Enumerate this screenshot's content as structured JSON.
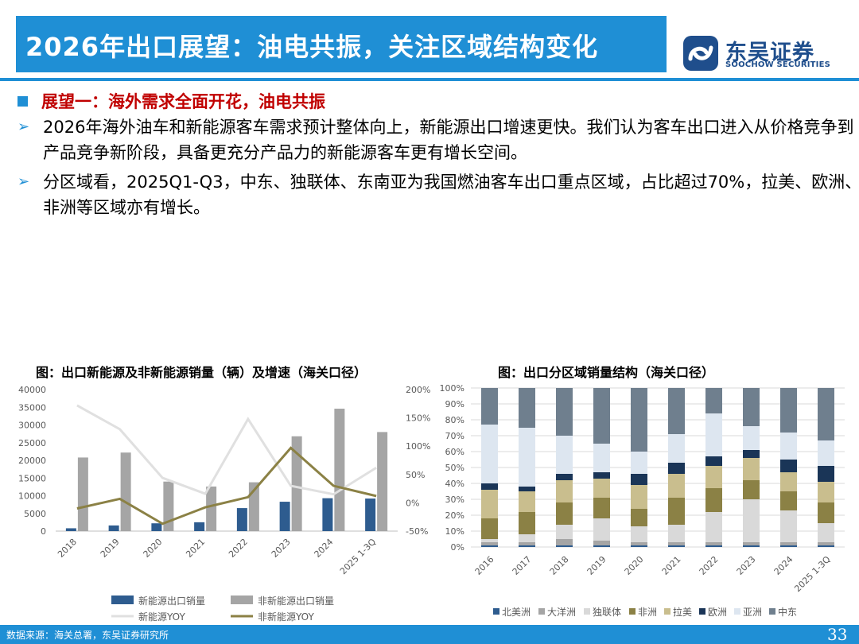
{
  "header": {
    "title": "2026年出口展望：油电共振，关注区域结构变化",
    "logo_name": "东吴证券",
    "logo_en": "SOOCHOW SECURITIES"
  },
  "content": {
    "heading": "展望一：海外需求全面开花，油电共振",
    "bullets": [
      "2026年海外油车和新能源客车需求预计整体向上，新能源出口增速更快。我们认为客车出口进入从价格竞争到产品竞争新阶段，具备更充分产品力的新能源客车更有增长空间。",
      "分区域看，2025Q1-Q3，中东、独联体、东南亚为我国燃油客车出口重点区域，占比超过70%，拉美、欧洲、非洲等区域亦有增长。"
    ]
  },
  "colors": {
    "blue": "#1f8fd5",
    "ne_bar": "#2e5c8f",
    "non_ne_bar": "#a5a5a5",
    "ne_line": "#e0e0e0",
    "non_ne_line": "#8b8145"
  },
  "chart_data": [
    {
      "type": "bar",
      "title": "图：出口新能源及非新能源销量（辆）及增速（海关口径）",
      "categories": [
        "2018",
        "2019",
        "2020",
        "2021",
        "2022",
        "2023",
        "2024",
        "2025 1-3Q"
      ],
      "y_ticks": [
        "40000",
        "35000",
        "30000",
        "25000",
        "20000",
        "15000",
        "10000",
        "5000",
        "0"
      ],
      "y2_ticks": [
        "200%",
        "150%",
        "100%",
        "50%",
        "0%",
        "-50%"
      ],
      "ylim": [
        0,
        40000
      ],
      "y2lim": [
        -50,
        200
      ],
      "series": [
        {
          "name": "新能源出口销量",
          "kind": "bar",
          "values": [
            800,
            1600,
            2200,
            2500,
            6500,
            8300,
            9300,
            9200
          ]
        },
        {
          "name": "非新能源出口销量",
          "kind": "bar",
          "values": [
            20800,
            22200,
            14000,
            12600,
            13800,
            26800,
            34600,
            28000
          ]
        },
        {
          "name": "新能源YOY",
          "kind": "line",
          "axis": "right",
          "values": [
            172,
            130,
            44,
            16,
            148,
            30,
            15,
            62
          ]
        },
        {
          "name": "非新能源YOY",
          "kind": "line",
          "axis": "right",
          "values": [
            -10,
            7,
            -37,
            -8,
            10,
            97,
            30,
            12
          ]
        }
      ]
    },
    {
      "type": "bar",
      "stacked": true,
      "title": "图：出口分区域销量结构（海关口径）",
      "categories": [
        "2016",
        "2017",
        "2018",
        "2019",
        "2020",
        "2021",
        "2022",
        "2023",
        "2024",
        "2025 1-3Q"
      ],
      "y_ticks": [
        "100%",
        "90%",
        "80%",
        "70%",
        "60%",
        "50%",
        "40%",
        "30%",
        "20%",
        "10%",
        "0%"
      ],
      "ylim": [
        0,
        100
      ],
      "series": [
        {
          "name": "北美洲",
          "color": "#2e5c8f",
          "values": [
            1,
            1,
            1,
            1,
            1,
            1,
            1,
            1,
            1,
            1
          ]
        },
        {
          "name": "大洋洲",
          "color": "#a5a5a5",
          "values": [
            2,
            2,
            4,
            3,
            2,
            2,
            2,
            2,
            2,
            2
          ]
        },
        {
          "name": "独联体",
          "color": "#d9d9d9",
          "values": [
            2,
            5,
            9,
            14,
            10,
            11,
            19,
            27,
            20,
            12
          ]
        },
        {
          "name": "非洲",
          "color": "#8b8145",
          "values": [
            13,
            14,
            14,
            13,
            11,
            17,
            15,
            12,
            12,
            13
          ]
        },
        {
          "name": "拉美",
          "color": "#c9be8e",
          "values": [
            18,
            13,
            14,
            12,
            15,
            15,
            14,
            14,
            12,
            13
          ]
        },
        {
          "name": "欧洲",
          "color": "#1a3557",
          "values": [
            4,
            3,
            4,
            4,
            7,
            7,
            6,
            5,
            8,
            10
          ]
        },
        {
          "name": "亚洲",
          "color": "#dde6f0",
          "values": [
            37,
            37,
            24,
            18,
            14,
            18,
            27,
            15,
            17,
            16
          ]
        },
        {
          "name": "中东",
          "color": "#6f7f8e",
          "values": [
            23,
            25,
            30,
            35,
            40,
            29,
            16,
            24,
            28,
            33
          ]
        }
      ]
    }
  ],
  "footer": {
    "source": "数据来源：海关总署，东吴证券研究所",
    "page": "33"
  }
}
